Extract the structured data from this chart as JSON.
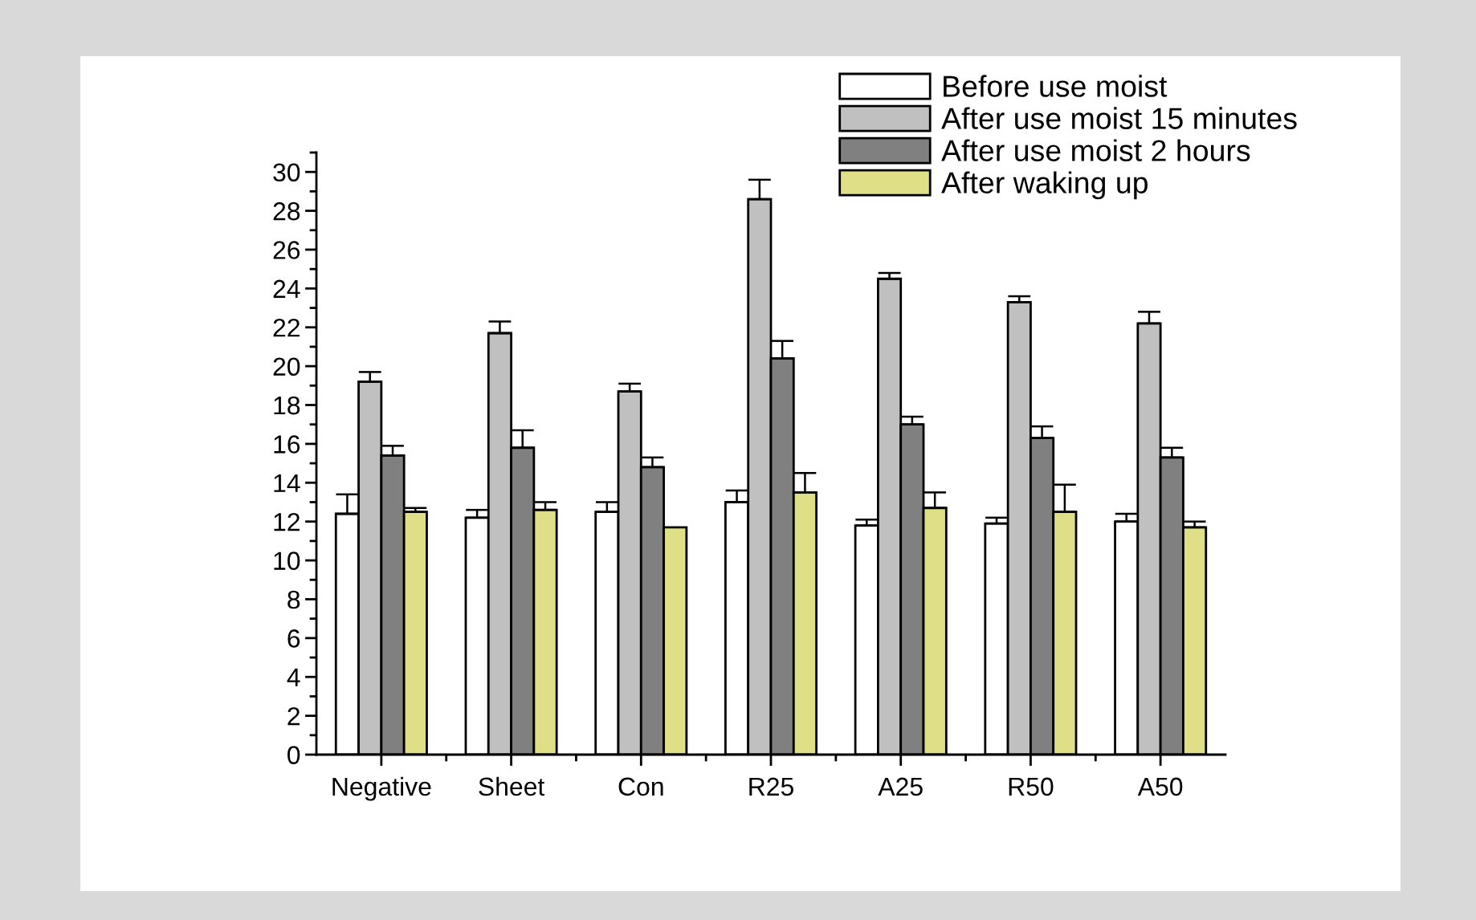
{
  "chart_data": {
    "type": "bar",
    "categories": [
      "Negative",
      "Sheet",
      "Con",
      "R25",
      "A25",
      "R50",
      "A50"
    ],
    "series": [
      {
        "name": "Before use moist",
        "color": "#ffffff",
        "values": [
          12.4,
          12.2,
          12.5,
          13.0,
          11.8,
          11.9,
          12.0
        ],
        "errors": [
          [
            12.4,
            13.4
          ],
          [
            12.2,
            12.6
          ],
          [
            12.5,
            13.0
          ],
          [
            13.0,
            13.6
          ],
          [
            11.8,
            12.1
          ],
          [
            11.9,
            12.2
          ],
          [
            12.0,
            12.4
          ]
        ]
      },
      {
        "name": "After use moist 15 minutes",
        "color": "#c0c0c0",
        "values": [
          19.2,
          21.7,
          18.7,
          28.6,
          24.5,
          23.3,
          22.2
        ],
        "errors": [
          [
            19.2,
            19.7
          ],
          [
            21.7,
            22.3
          ],
          [
            18.7,
            19.1
          ],
          [
            28.6,
            29.6
          ],
          [
            24.5,
            24.8
          ],
          [
            23.3,
            23.6
          ],
          [
            22.2,
            22.8
          ]
        ]
      },
      {
        "name": "After use moist 2 hours",
        "color": "#808080",
        "values": [
          15.4,
          15.8,
          14.8,
          20.4,
          17.0,
          16.3,
          15.3
        ],
        "errors": [
          [
            15.4,
            15.9
          ],
          [
            15.8,
            16.7
          ],
          [
            14.8,
            15.3
          ],
          [
            20.4,
            21.3
          ],
          [
            17.0,
            17.4
          ],
          [
            16.3,
            16.9
          ],
          [
            15.3,
            15.8
          ]
        ]
      },
      {
        "name": "After waking up",
        "color": "#dfdf87",
        "values": [
          12.5,
          12.6,
          11.7,
          13.5,
          12.7,
          12.5,
          11.7
        ],
        "errors": [
          [
            12.5,
            12.7
          ],
          [
            12.6,
            13.0
          ],
          null,
          [
            13.5,
            14.5
          ],
          [
            12.7,
            13.5
          ],
          [
            12.5,
            13.9
          ],
          [
            11.7,
            12.0
          ]
        ]
      }
    ],
    "ylim": [
      0,
      31
    ],
    "yticks": [
      0,
      2,
      4,
      6,
      8,
      10,
      12,
      14,
      16,
      18,
      20,
      22,
      24,
      26,
      28,
      30
    ],
    "grid": false,
    "legend": "top right"
  }
}
